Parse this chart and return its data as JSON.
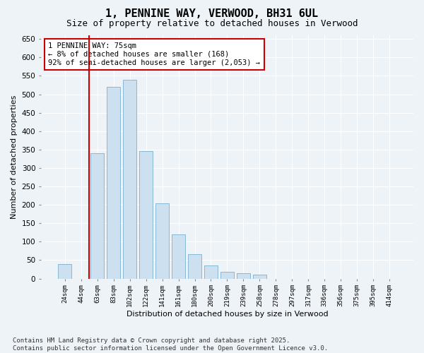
{
  "title": "1, PENNINE WAY, VERWOOD, BH31 6UL",
  "subtitle": "Size of property relative to detached houses in Verwood",
  "xlabel": "Distribution of detached houses by size in Verwood",
  "ylabel": "Number of detached properties",
  "categories": [
    "24sqm",
    "44sqm",
    "63sqm",
    "83sqm",
    "102sqm",
    "122sqm",
    "141sqm",
    "161sqm",
    "180sqm",
    "200sqm",
    "219sqm",
    "239sqm",
    "258sqm",
    "278sqm",
    "297sqm",
    "317sqm",
    "336sqm",
    "356sqm",
    "375sqm",
    "395sqm",
    "414sqm"
  ],
  "values": [
    40,
    0,
    340,
    520,
    540,
    345,
    205,
    120,
    67,
    35,
    18,
    15,
    10,
    0,
    0,
    0,
    0,
    0,
    0,
    0,
    0
  ],
  "bar_color": "#cce0f0",
  "bar_edge_color": "#7ab0d0",
  "vline_x": 1.5,
  "vline_color": "#cc0000",
  "annotation_text": "1 PENNINE WAY: 75sqm\n← 8% of detached houses are smaller (168)\n92% of semi-detached houses are larger (2,053) →",
  "annotation_box_facecolor": "#ffffff",
  "annotation_box_edgecolor": "#cc0000",
  "ylim": [
    0,
    660
  ],
  "yticks": [
    0,
    50,
    100,
    150,
    200,
    250,
    300,
    350,
    400,
    450,
    500,
    550,
    600,
    650
  ],
  "background_color": "#eef3f8",
  "grid_color": "#ffffff",
  "footer_line1": "Contains HM Land Registry data © Crown copyright and database right 2025.",
  "footer_line2": "Contains public sector information licensed under the Open Government Licence v3.0.",
  "title_fontsize": 11,
  "subtitle_fontsize": 9,
  "footer_fontsize": 6.5,
  "annotation_fontsize": 7.5,
  "ylabel_fontsize": 8,
  "xlabel_fontsize": 8,
  "ytick_fontsize": 7.5,
  "xtick_fontsize": 6.5
}
